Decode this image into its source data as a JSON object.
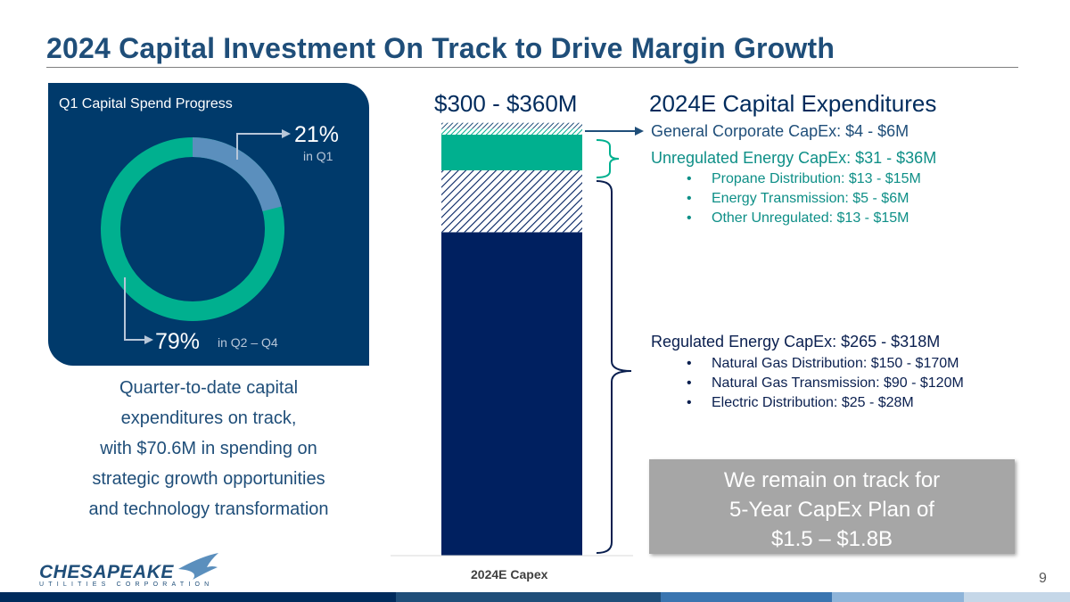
{
  "page": {
    "title": "2024 Capital Investment On Track to Drive Margin Growth",
    "page_number": "9"
  },
  "q1_panel": {
    "title": "Q1 Capital Spend Progress",
    "q1_pct": "21%",
    "q1_label": "in Q1",
    "rest_pct": "79%",
    "rest_label": "in Q2 – Q4",
    "q1_fraction": 0.21,
    "colors": {
      "q1": "#5b8fbd",
      "rest": "#00b08f",
      "panel": "#003a6b"
    }
  },
  "left_text": {
    "lines": [
      "Quarter-to-date capital",
      "expenditures on track,",
      "with $70.6M in spending on",
      "strategic growth opportunities",
      "and technology transformation"
    ]
  },
  "capex": {
    "title": "2024E Capital Expenditures",
    "range_label": "$300 - $360M",
    "general": {
      "label": "General Corporate CapEx: $4 - $6M"
    },
    "unregulated": {
      "label": "Unregulated Energy CapEx: $31 - $36M",
      "items": [
        "Propane Distribution: $13 - $15M",
        "Energy Transmission: $5 - $6M",
        "Other Unregulated: $13 - $15M"
      ]
    },
    "regulated": {
      "label": "Regulated Energy CapEx: $265 - $318M",
      "items": [
        "Natural Gas Distribution: $150 - $170M",
        "Natural Gas Transmission: $90 - $120M",
        "Electric Distribution: $25 - $28M"
      ]
    }
  },
  "callout": {
    "lines": [
      "We remain on track for",
      "5-Year CapEx Plan of",
      "$1.5 – $1.8B"
    ]
  },
  "logo": {
    "name": "CHESAPEAKE",
    "sub": "UTILITIES CORPORATION"
  },
  "chart_data": {
    "type": "bar",
    "stacked": true,
    "categories": [
      "2024E Capex"
    ],
    "series": [
      {
        "values": [
          272
        ],
        "color": "#002060",
        "pattern": "solid"
      },
      {
        "values": [
          52
        ],
        "color": "#002060",
        "pattern": "hatch"
      },
      {
        "values": [
          30
        ],
        "color": "#00b08f",
        "pattern": "solid"
      },
      {
        "values": [
          5
        ],
        "color": "#00b08f",
        "pattern": "hatch"
      },
      {
        "values": [
          5
        ],
        "color": "#1f4e79",
        "pattern": "hatch"
      }
    ],
    "ylim": [
      0,
      360
    ],
    "grid": false,
    "title": "",
    "xlabel": "",
    "ylabel": ""
  },
  "footer_colors": [
    "#002b5c",
    "#1f4e79",
    "#3a75b0",
    "#8eb4d9",
    "#c5d7e8"
  ]
}
